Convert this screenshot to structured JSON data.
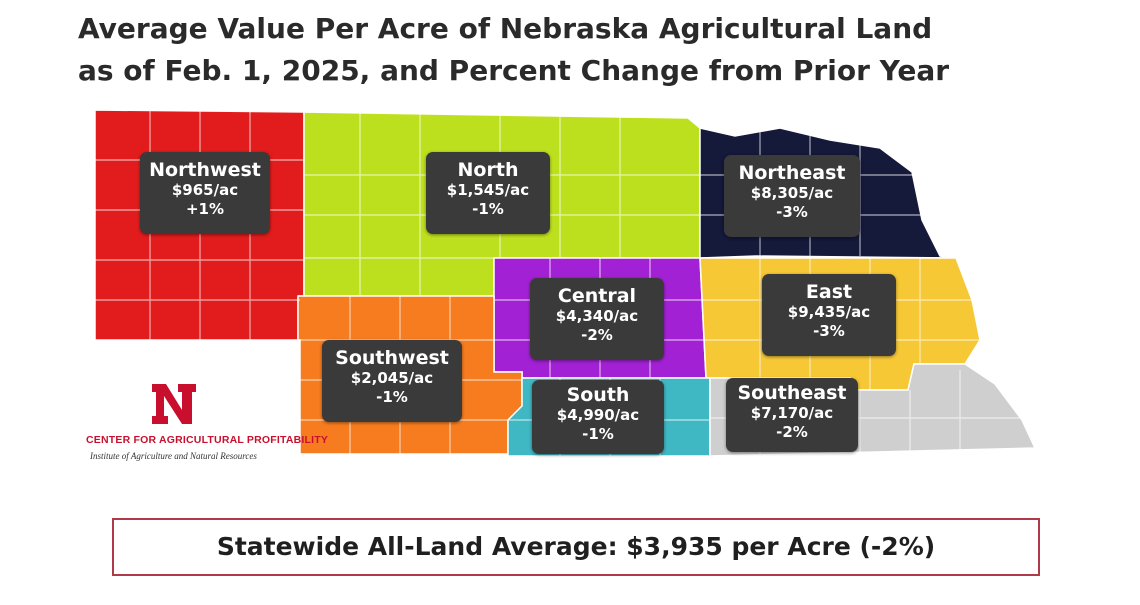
{
  "title": {
    "line1": "Average Value Per Acre of Nebraska Agricultural Land",
    "line2": "as of Feb. 1, 2025, and Percent Change from Prior Year"
  },
  "regions": [
    {
      "id": "northwest",
      "name": "Northwest",
      "value": "$965/ac",
      "change": "+1%",
      "color": "#e21c1c"
    },
    {
      "id": "north",
      "name": "North",
      "value": "$1,545/ac",
      "change": "-1%",
      "color": "#bde01e"
    },
    {
      "id": "northeast",
      "name": "Northeast",
      "value": "$8,305/ac",
      "change": "-3%",
      "color": "#15193a"
    },
    {
      "id": "central",
      "name": "Central",
      "value": "$4,340/ac",
      "change": "-2%",
      "color": "#a321d4"
    },
    {
      "id": "east",
      "name": "East",
      "value": "$9,435/ac",
      "change": "-3%",
      "color": "#f6c836"
    },
    {
      "id": "southwest",
      "name": "Southwest",
      "value": "$2,045/ac",
      "change": "-1%",
      "color": "#f77c1f"
    },
    {
      "id": "south",
      "name": "South",
      "value": "$4,990/ac",
      "change": "-1%",
      "color": "#3fb8c4"
    },
    {
      "id": "southeast",
      "name": "Southeast",
      "value": "$7,170/ac",
      "change": "-2%",
      "color": "#cfcfcf"
    }
  ],
  "logo": {
    "mark": "N",
    "organization": "CENTER FOR AGRICULTURAL PROFITABILITY",
    "institute": "Institute of Agriculture and Natural Resources"
  },
  "statewide": "Statewide All-Land Average: $3,935 per Acre (-2%)"
}
